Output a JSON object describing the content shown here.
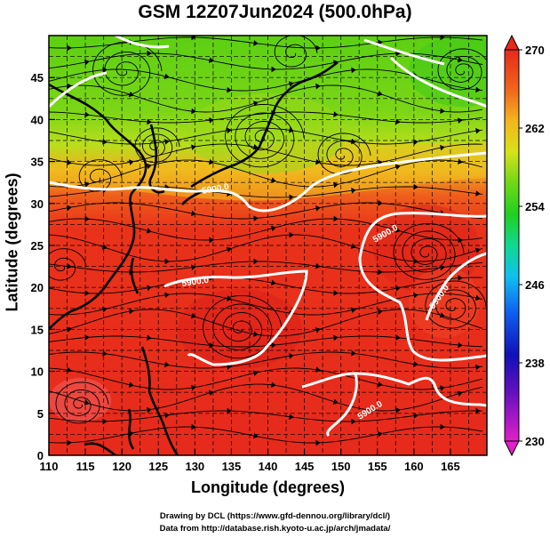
{
  "title": "GSM 12Z07Jun2024 (500.0hPa)",
  "axes": {
    "xlabel": "Longitude (degrees)",
    "ylabel": "Latitude  (degrees)",
    "xticks": [
      "110",
      "115",
      "120",
      "125",
      "130",
      "135",
      "140",
      "145",
      "150",
      "155",
      "160",
      "165"
    ],
    "yticks": [
      "0",
      "5",
      "10",
      "15",
      "20",
      "25",
      "30",
      "35",
      "40",
      "45"
    ],
    "xlim": [
      110,
      170
    ],
    "ylim": [
      0,
      50
    ],
    "grid": "on (every 2.5 degrees)"
  },
  "colorbar": {
    "labels": [
      "270",
      "262",
      "254",
      "246",
      "238",
      "230"
    ],
    "range": [
      230,
      270
    ],
    "position": "right"
  },
  "contours": {
    "labels": [
      "5900.0",
      "5900.0",
      "5900.0",
      "5900.0"
    ]
  },
  "credits": {
    "line1": "Drawing by DCL (https://www.gfd-dennou.org/library/dcl/)",
    "line2": "Data from http://database.rish.kyoto-u.ac.jp/arch/jmadata/"
  },
  "colors": {
    "warm": "#e8201a",
    "mid": "#f08a1a",
    "yellow": "#d8e21a",
    "green": "#58d012",
    "land": "#000000",
    "contour": "#ffffff"
  }
}
